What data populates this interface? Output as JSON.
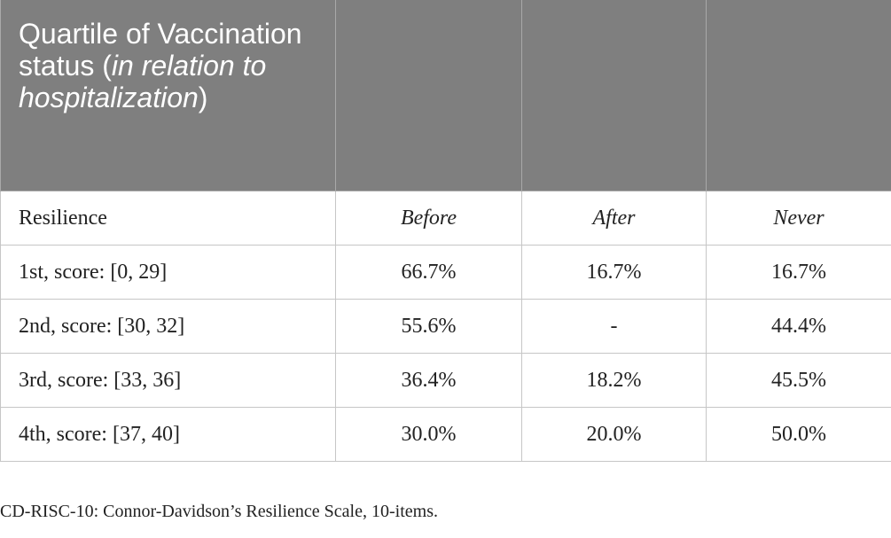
{
  "header": {
    "title_prefix": "Quartile of Vaccination status (",
    "title_italic": "in relation to hospitalization",
    "title_suffix": ")"
  },
  "table": {
    "columns": [
      "Resilience",
      "Before",
      "After",
      "Never"
    ],
    "rows": [
      [
        "1st, score: [0, 29]",
        "66.7%",
        "16.7%",
        "16.7%"
      ],
      [
        "2nd, score: [30, 32]",
        "55.6%",
        "-",
        "44.4%"
      ],
      [
        "3rd, score: [33, 36]",
        "36.4%",
        "18.2%",
        "45.5%"
      ],
      [
        "4th, score: [37, 40]",
        "30.0%",
        "20.0%",
        "50.0%"
      ]
    ]
  },
  "footnote": "CD-RISC-10: Connor-Davidson’s Resilience Scale, 10-items."
}
